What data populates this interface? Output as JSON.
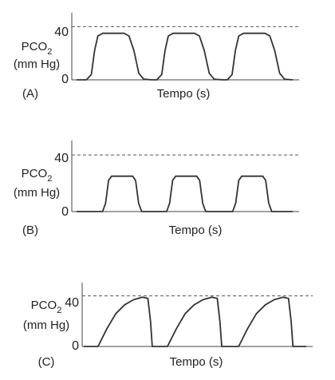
{
  "chart_data": [
    {
      "type": "line",
      "panel_label": "(A)",
      "xlabel": "Tempo (s)",
      "ylabel_main": "PCO",
      "ylabel_sub": "2",
      "ylabel_units": "(mm Hg)",
      "yticks": [
        "40",
        "0"
      ],
      "ylim": [
        0,
        48
      ],
      "reference_line": 40,
      "series": [
        {
          "points": [
            [
              0,
              0
            ],
            [
              0.6,
              0
            ],
            [
              0.9,
              4
            ],
            [
              1.1,
              22
            ],
            [
              1.3,
              33
            ],
            [
              1.6,
              35
            ],
            [
              2.9,
              35
            ],
            [
              3.2,
              33
            ],
            [
              3.5,
              22
            ],
            [
              3.8,
              5
            ],
            [
              4.1,
              0.5
            ],
            [
              4.6,
              0
            ],
            [
              4.9,
              0
            ],
            [
              5.2,
              4
            ],
            [
              5.4,
              22
            ],
            [
              5.6,
              33
            ],
            [
              5.9,
              35
            ],
            [
              7.2,
              35
            ],
            [
              7.5,
              33
            ],
            [
              7.8,
              22
            ],
            [
              8.1,
              5
            ],
            [
              8.4,
              0.5
            ],
            [
              8.9,
              0
            ],
            [
              9.2,
              0
            ],
            [
              9.5,
              4
            ],
            [
              9.7,
              22
            ],
            [
              9.9,
              33
            ],
            [
              10.2,
              35
            ],
            [
              11.5,
              35
            ],
            [
              11.8,
              33
            ],
            [
              12.1,
              22
            ],
            [
              12.4,
              5
            ],
            [
              12.7,
              0.5
            ],
            [
              13.2,
              0
            ]
          ]
        }
      ]
    },
    {
      "type": "line",
      "panel_label": "(B)",
      "xlabel": "Tempo (s)",
      "ylabel_main": "PCO",
      "ylabel_sub": "2",
      "ylabel_units": "(mm Hg)",
      "yticks": [
        "40",
        "0"
      ],
      "ylim": [
        0,
        48
      ],
      "reference_line": 40,
      "series": [
        {
          "points": [
            [
              0,
              0
            ],
            [
              1.3,
              0
            ],
            [
              1.45,
              6
            ],
            [
              1.6,
              22
            ],
            [
              1.75,
              25
            ],
            [
              2.8,
              25
            ],
            [
              2.95,
              22
            ],
            [
              3.1,
              6
            ],
            [
              3.25,
              0
            ],
            [
              4.5,
              0
            ],
            [
              4.65,
              6
            ],
            [
              4.8,
              22
            ],
            [
              4.95,
              25
            ],
            [
              6.0,
              25
            ],
            [
              6.15,
              22
            ],
            [
              6.3,
              6
            ],
            [
              6.45,
              0
            ],
            [
              7.8,
              0
            ],
            [
              7.95,
              6
            ],
            [
              8.1,
              22
            ],
            [
              8.25,
              25
            ],
            [
              9.3,
              25
            ],
            [
              9.45,
              22
            ],
            [
              9.6,
              6
            ],
            [
              9.75,
              0
            ],
            [
              10.8,
              0
            ]
          ]
        }
      ]
    },
    {
      "type": "line",
      "panel_label": "(C)",
      "xlabel": "Tempo (s)",
      "ylabel_main": "PCO",
      "ylabel_sub": "2",
      "ylabel_units": "(mm Hg)",
      "yticks": [
        "40",
        "0"
      ],
      "ylim": [
        0,
        48
      ],
      "reference_line": 40,
      "series": [
        {
          "points": [
            [
              0,
              0
            ],
            [
              0.8,
              0
            ],
            [
              1.3,
              14
            ],
            [
              1.8,
              26
            ],
            [
              2.3,
              33
            ],
            [
              2.8,
              37
            ],
            [
              3.3,
              39
            ],
            [
              3.6,
              38
            ],
            [
              3.75,
              20
            ],
            [
              3.85,
              0
            ],
            [
              4.7,
              0
            ],
            [
              5.2,
              14
            ],
            [
              5.7,
              26
            ],
            [
              6.2,
              33
            ],
            [
              6.7,
              37
            ],
            [
              7.2,
              39
            ],
            [
              7.5,
              38
            ],
            [
              7.65,
              20
            ],
            [
              7.75,
              0
            ],
            [
              8.7,
              0
            ],
            [
              9.2,
              14
            ],
            [
              9.7,
              26
            ],
            [
              10.2,
              33
            ],
            [
              10.7,
              37
            ],
            [
              11.2,
              39
            ],
            [
              11.5,
              38
            ],
            [
              11.65,
              20
            ],
            [
              11.75,
              0
            ],
            [
              12.5,
              0
            ]
          ]
        }
      ]
    }
  ]
}
